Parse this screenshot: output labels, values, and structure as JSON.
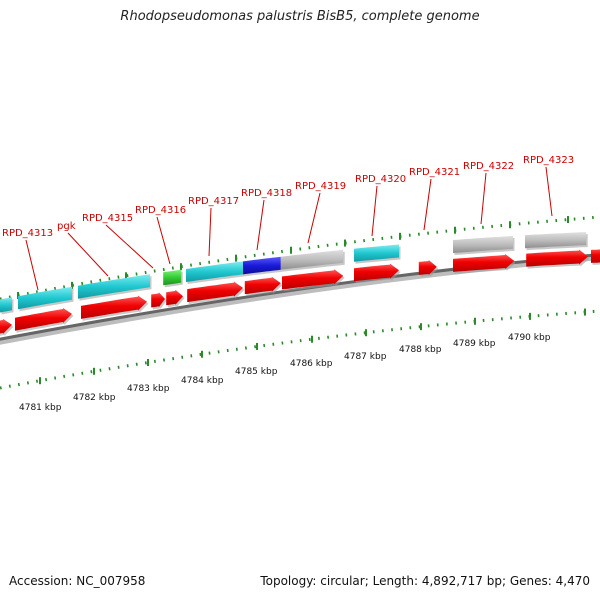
{
  "title": "Rhodopseudomonas palustris BisB5, complete genome",
  "footer": {
    "accession_label": "Accession:",
    "accession": "NC_007958",
    "topology_label": "Topology:",
    "topology": "circular",
    "length_label": "Length:",
    "length": "4,892,717 bp",
    "genes_label": "Genes:",
    "genes": "4,470"
  },
  "colors": {
    "gene_forward": "#ff0000",
    "gene_cyan": "#20c8d0",
    "gene_blue": "#1a1ad8",
    "gene_gray": "#bbbbbb",
    "gene_green": "#33cc33",
    "label": "#cc0000",
    "tick": "#008000",
    "backbone": "#777777"
  },
  "scale": {
    "unit": "kbp",
    "labels": [
      "4781 kbp",
      "4782 kbp",
      "4783 kbp",
      "4784 kbp",
      "4785 kbp",
      "4786 kbp",
      "4787 kbp",
      "4788 kbp",
      "4789 kbp",
      "4790 kbp"
    ]
  },
  "gene_labels": [
    "RPD_4313",
    "pgk",
    "RPD_4315",
    "RPD_4316",
    "RPD_4317",
    "RPD_4318",
    "RPD_4319",
    "RPD_4320",
    "RPD_4321",
    "RPD_4322",
    "RPD_4323"
  ],
  "features": [
    {
      "track": "outer",
      "start": 0.0,
      "end": 0.02,
      "color": "cyan"
    },
    {
      "track": "outer",
      "start": 0.03,
      "end": 0.12,
      "color": "cyan"
    },
    {
      "track": "outer",
      "start": 0.13,
      "end": 0.25,
      "color": "cyan"
    },
    {
      "track": "outer",
      "start": 0.272,
      "end": 0.302,
      "color": "green"
    },
    {
      "track": "outer",
      "start": 0.31,
      "end": 0.405,
      "color": "cyan"
    },
    {
      "track": "outer",
      "start": 0.405,
      "end": 0.468,
      "color": "blue"
    },
    {
      "track": "outer",
      "start": 0.468,
      "end": 0.572,
      "color": "gray"
    },
    {
      "track": "outer",
      "start": 0.59,
      "end": 0.665,
      "color": "cyan"
    },
    {
      "track": "outer",
      "start": 0.755,
      "end": 0.855,
      "color": "gray"
    },
    {
      "track": "outer",
      "start": 0.875,
      "end": 0.977,
      "color": "gray"
    },
    {
      "track": "inner",
      "start": -0.03,
      "end": 0.02,
      "color": "red"
    },
    {
      "track": "inner",
      "start": 0.025,
      "end": 0.12,
      "color": "red"
    },
    {
      "track": "inner",
      "start": 0.135,
      "end": 0.245,
      "color": "red"
    },
    {
      "track": "inner",
      "start": 0.252,
      "end": 0.275,
      "color": "red"
    },
    {
      "track": "inner",
      "start": 0.277,
      "end": 0.305,
      "color": "red"
    },
    {
      "track": "inner",
      "start": 0.312,
      "end": 0.405,
      "color": "red"
    },
    {
      "track": "inner",
      "start": 0.408,
      "end": 0.468,
      "color": "red"
    },
    {
      "track": "inner",
      "start": 0.47,
      "end": 0.572,
      "color": "red"
    },
    {
      "track": "inner",
      "start": 0.59,
      "end": 0.665,
      "color": "red"
    },
    {
      "track": "inner",
      "start": 0.698,
      "end": 0.728,
      "color": "red"
    },
    {
      "track": "inner",
      "start": 0.755,
      "end": 0.857,
      "color": "red"
    },
    {
      "track": "inner",
      "start": 0.877,
      "end": 0.98,
      "color": "red"
    },
    {
      "track": "inner",
      "start": 0.985,
      "end": 1.03,
      "color": "red"
    }
  ]
}
